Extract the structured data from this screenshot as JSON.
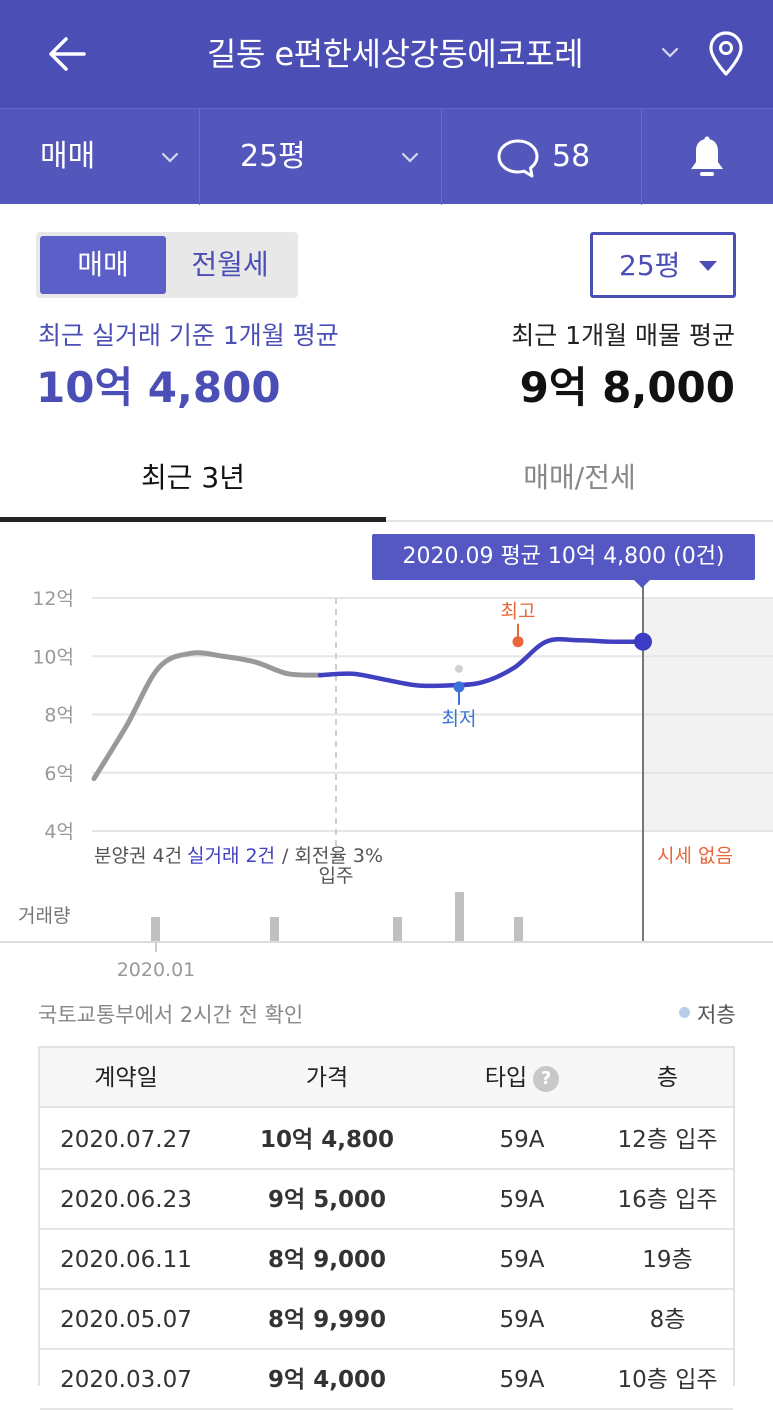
{
  "header": {
    "title": "길동 e편한세상강동에코포레",
    "back_icon": "arrow-left-icon",
    "location_icon": "map-pin-icon"
  },
  "subbar": {
    "trade_type": "매매",
    "size": "25평",
    "comment_count": "58",
    "comment_icon": "speech-bubble-icon",
    "alert_icon": "bell-icon"
  },
  "toggle": {
    "active": "매매",
    "inactive": "전월세"
  },
  "size_select": {
    "value": "25평"
  },
  "summary": {
    "left_label": "최근 실거래 기준 1개월 평균",
    "left_value": "10억 4,800",
    "right_label": "최근 1개월 매물 평균",
    "right_value": "9억 8,000"
  },
  "tabs": [
    {
      "label": "최근 3년",
      "active": true
    },
    {
      "label": "매매/전세",
      "active": false
    }
  ],
  "tooltip": "2020.09 평균 10억 4,800 (0건)",
  "chart_data": {
    "type": "line",
    "y_tick_labels": [
      "12억",
      "10억",
      "8억",
      "6억",
      "4억"
    ],
    "y_ticks": [
      12,
      10,
      8,
      6,
      4
    ],
    "ylim": [
      4,
      12
    ],
    "x_tick_label": "2020.01",
    "ylabel": "",
    "xlabel": "",
    "series": [
      {
        "points": [
          5.8,
          7.6,
          9.6,
          10.1,
          10.0,
          9.8,
          9.4,
          9.35,
          9.4,
          9.2,
          9.0,
          9.0,
          9.1,
          9.6,
          10.5,
          10.55,
          10.5,
          10.5
        ]
      }
    ],
    "markers": {
      "high_label": "최고",
      "low_label": "최저",
      "high_value": 10.5,
      "low_value": 8.95
    },
    "annotations": {
      "presale": "분양권 4건",
      "actual_trade": "실거래 2건",
      "turnover": "/ 회전율 3%",
      "move_in": "입주",
      "no_price": "시세 없음",
      "volume_label": "거래량"
    },
    "volume": [
      1,
      1,
      1,
      2,
      1
    ],
    "colors": {
      "accent": "#4b4fb5",
      "past_line": "#999999",
      "high": "#e8663a",
      "low": "#3a74d8"
    }
  },
  "source": {
    "text": "국토교통부에서 2시간 전 확인",
    "legend": "저층"
  },
  "table": {
    "headers": [
      "계약일",
      "가격",
      "타입",
      "층"
    ],
    "rows": [
      [
        "2020.07.27",
        "10억 4,800",
        "59A",
        "12층 입주"
      ],
      [
        "2020.06.23",
        "9억 5,000",
        "59A",
        "16층 입주"
      ],
      [
        "2020.06.11",
        "8억 9,000",
        "59A",
        "19층"
      ],
      [
        "2020.05.07",
        "8억 9,990",
        "59A",
        "8층"
      ],
      [
        "2020.03.07",
        "9억 4,000",
        "59A",
        "10층 입주"
      ]
    ]
  }
}
